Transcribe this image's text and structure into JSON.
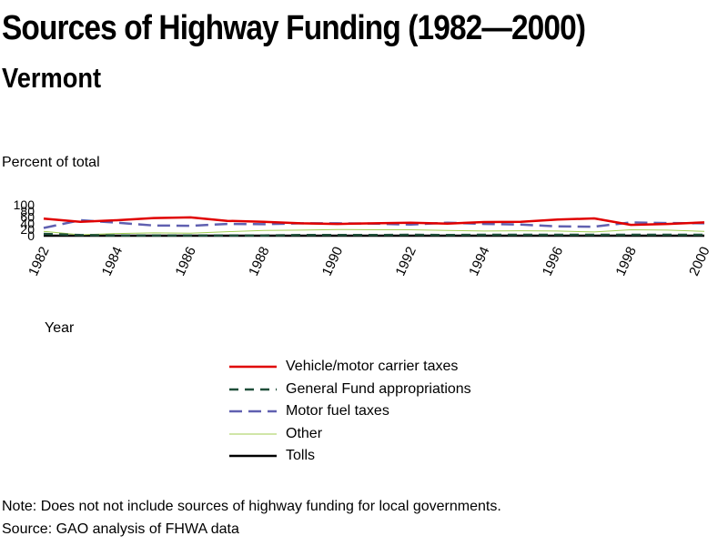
{
  "header": {
    "title": "Sources of Highway Funding (1982—2000)",
    "subtitle": "Vermont"
  },
  "footer": {
    "note": "Note: Does not not include sources of highway funding for local governments.",
    "source": "Source: GAO analysis of FHWA data"
  },
  "chart_data": {
    "type": "line",
    "title": "Sources of Highway Funding (1982—2000)",
    "subtitle": "Vermont",
    "ylabel": "Percent of total",
    "xlabel": "Year",
    "xlim": [
      1982,
      2000
    ],
    "ylim": [
      0,
      100
    ],
    "x_ticks": [
      "1982",
      "1984",
      "1986",
      "1988",
      "1990",
      "1992",
      "1994",
      "1996",
      "1998",
      "2000"
    ],
    "y_ticks": [
      "100",
      "80",
      "60",
      "40",
      "20",
      "0"
    ],
    "grid": false,
    "legend_placement": "bottom",
    "x": [
      1982,
      1983,
      1984,
      1985,
      1986,
      1987,
      1988,
      1989,
      1990,
      1991,
      1992,
      1993,
      1994,
      1995,
      1996,
      1997,
      1998,
      1999,
      2000
    ],
    "series": [
      {
        "name": "Vehicle/motor carrier taxes",
        "color": "#e00000",
        "dash": "solid",
        "values": [
          55,
          45,
          50,
          57,
          59,
          48,
          45,
          40,
          38,
          40,
          42,
          39,
          44,
          45,
          52,
          56,
          35,
          38,
          43
        ]
      },
      {
        "name": "General Fund appropriations",
        "color": "#1f4f3a",
        "dash": "dashed",
        "values": [
          6,
          2,
          1,
          1,
          1,
          1,
          1,
          2,
          2,
          2,
          3,
          2,
          3,
          3,
          3,
          3,
          3,
          3,
          3
        ]
      },
      {
        "name": "Motor fuel taxes",
        "color": "#6060b0",
        "dash": "dashed",
        "values": [
          25,
          50,
          42,
          33,
          32,
          38,
          37,
          40,
          40,
          39,
          36,
          42,
          38,
          36,
          30,
          29,
          43,
          41,
          40
        ]
      },
      {
        "name": "Other",
        "color": "#a0cc50",
        "dash": "solid",
        "values": [
          14,
          3,
          7,
          9,
          8,
          13,
          17,
          18,
          20,
          19,
          19,
          17,
          15,
          16,
          15,
          12,
          19,
          18,
          14
        ]
      },
      {
        "name": "Tolls",
        "color": "#000000",
        "dash": "solid",
        "values": [
          0,
          0,
          0,
          0,
          0,
          0,
          0,
          0,
          0,
          0,
          0,
          0,
          0,
          0,
          0,
          0,
          0,
          0,
          0
        ]
      }
    ]
  }
}
